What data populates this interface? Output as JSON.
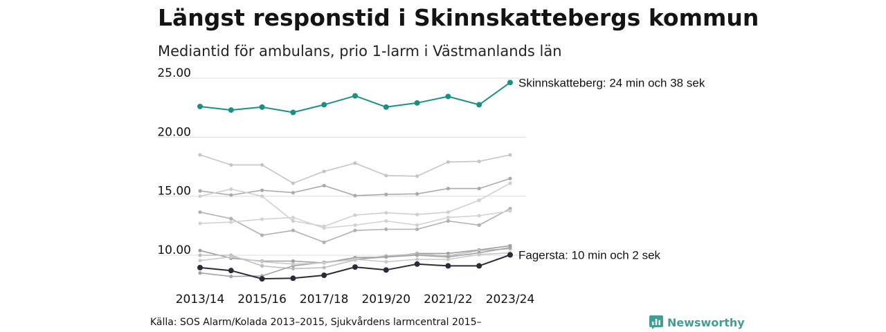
{
  "header": {
    "title": "Längst responstid i Skinnskattebergs kommun",
    "subtitle": "Mediantid för ambulans, prio 1-larm i Västmanlands län"
  },
  "footer": {
    "source": "Källa: SOS Alarm/Kolada 2013–2015, Sjukvårdens larmcentral 2015–",
    "brand": "Newsworthy"
  },
  "colors": {
    "highlight_high": "#1a8f83",
    "highlight_low": "#2b2b38",
    "others": [
      "#c4c4c4",
      "#a9a9a9",
      "#cfcfcf",
      "#b0b0b0",
      "#d2d2d2",
      "#9e9e9e",
      "#bdbdbd",
      "#a3a3a3",
      "#c9c9c9"
    ],
    "grid": "#dcdcdc",
    "brand": "#3f9f95"
  },
  "chart_data": {
    "type": "line",
    "ylim": [
      7.5,
      25.5
    ],
    "y_ticks": [
      "25.00",
      "20.00",
      "15.00",
      "10.00"
    ],
    "y_tick_values": [
      25,
      20,
      15,
      10
    ],
    "x_tick_labels": [
      "2013/14",
      "2015/16",
      "2017/18",
      "2019/20",
      "2021/22",
      "2023/24"
    ],
    "x_tick_index": [
      0,
      2,
      4,
      6,
      8,
      10
    ],
    "x_count": 11,
    "grid": true,
    "legend": "none",
    "series": [
      {
        "label": "Skinnskatteberg: 24 min och 38 sek",
        "highlight": "high",
        "values": [
          22.6,
          22.3,
          22.55,
          22.1,
          22.75,
          23.5,
          22.55,
          22.9,
          23.45,
          22.75,
          24.63
        ]
      },
      {
        "highlight": "none",
        "values": [
          18.5,
          17.65,
          17.65,
          16.1,
          17.1,
          17.8,
          16.75,
          16.7,
          17.9,
          17.95,
          18.5
        ]
      },
      {
        "highlight": "none",
        "values": [
          15.45,
          15.1,
          15.5,
          15.3,
          15.9,
          15.05,
          15.15,
          15.2,
          15.65,
          15.65,
          16.5
        ]
      },
      {
        "highlight": "none",
        "values": [
          15.0,
          15.6,
          15.0,
          12.9,
          12.45,
          13.4,
          13.6,
          13.45,
          13.65,
          14.65,
          16.1
        ]
      },
      {
        "highlight": "none",
        "values": [
          13.65,
          13.1,
          11.7,
          12.1,
          11.1,
          12.1,
          12.2,
          12.2,
          12.9,
          12.55,
          13.95
        ]
      },
      {
        "highlight": "none",
        "values": [
          12.7,
          12.8,
          13.05,
          13.2,
          12.3,
          12.55,
          12.9,
          12.55,
          13.2,
          13.35,
          13.75
        ]
      },
      {
        "highlight": "none",
        "values": [
          10.4,
          9.75,
          9.5,
          9.5,
          9.35,
          9.8,
          9.85,
          10.15,
          10.15,
          10.45,
          10.8
        ]
      },
      {
        "highlight": "none",
        "values": [
          10.0,
          10.0,
          9.1,
          8.85,
          8.95,
          9.6,
          9.95,
          10.1,
          9.95,
          10.4,
          10.55
        ]
      },
      {
        "highlight": "none",
        "values": [
          8.5,
          8.2,
          8.25,
          9.1,
          9.4,
          9.65,
          9.85,
          10.0,
          9.85,
          10.2,
          10.65
        ]
      },
      {
        "highlight": "none",
        "values": [
          9.55,
          9.85,
          9.45,
          9.25,
          9.35,
          9.65,
          9.45,
          9.65,
          9.65,
          10.05,
          10.2
        ]
      },
      {
        "label": "Fagersta: 10 min och 2 sek",
        "highlight": "low",
        "values": [
          8.95,
          8.7,
          8.0,
          8.05,
          8.3,
          9.0,
          8.75,
          9.25,
          9.1,
          9.1,
          10.03
        ]
      }
    ]
  }
}
